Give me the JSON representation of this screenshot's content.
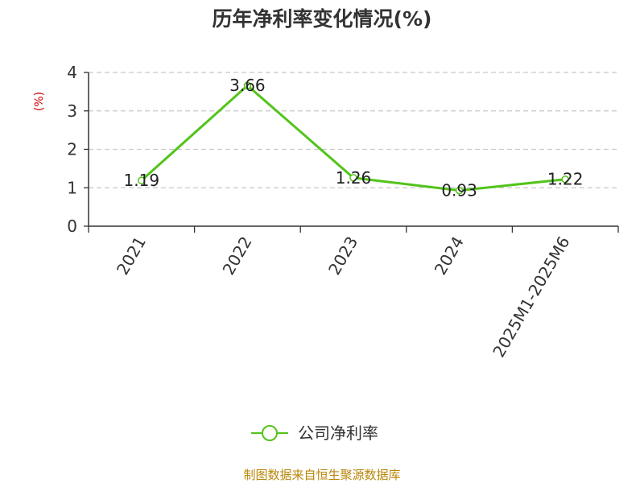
{
  "chart_data": {
    "type": "line",
    "title": "历年净利率变化情况(%)",
    "ylabel": "(%)",
    "xlabel": "",
    "categories": [
      "2021",
      "2022",
      "2023",
      "2024",
      "2025M1-2025M6"
    ],
    "series": [
      {
        "name": "公司净利率",
        "values": [
          1.19,
          3.66,
          1.26,
          0.93,
          1.22
        ],
        "color": "#52c41a"
      }
    ],
    "data_labels": [
      "1.19",
      "3.66",
      "1.26",
      "0.93",
      "1.22"
    ],
    "ylim": [
      0,
      4
    ],
    "yticks": [
      0,
      1,
      2,
      3,
      4
    ],
    "grid": true,
    "legend_position": "bottom-center"
  },
  "source_text": "制图数据来自恒生聚源数据库",
  "colors": {
    "series": "#52c41a",
    "ylabel": "#cc0000",
    "source": "#b8860b",
    "grid": "#c8c8c8",
    "axis": "#333333",
    "text": "#333333"
  }
}
